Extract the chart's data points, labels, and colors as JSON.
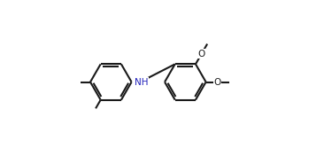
{
  "background_color": "#ffffff",
  "bond_color": "#1a1a1a",
  "text_color": "#1a1a1a",
  "nh_color": "#2222bb",
  "line_width": 1.5,
  "dbo": 0.012,
  "figsize": [
    3.66,
    1.85
  ],
  "dpi": 100,
  "xlim": [
    0.0,
    1.0
  ],
  "ylim": [
    0.05,
    0.95
  ]
}
